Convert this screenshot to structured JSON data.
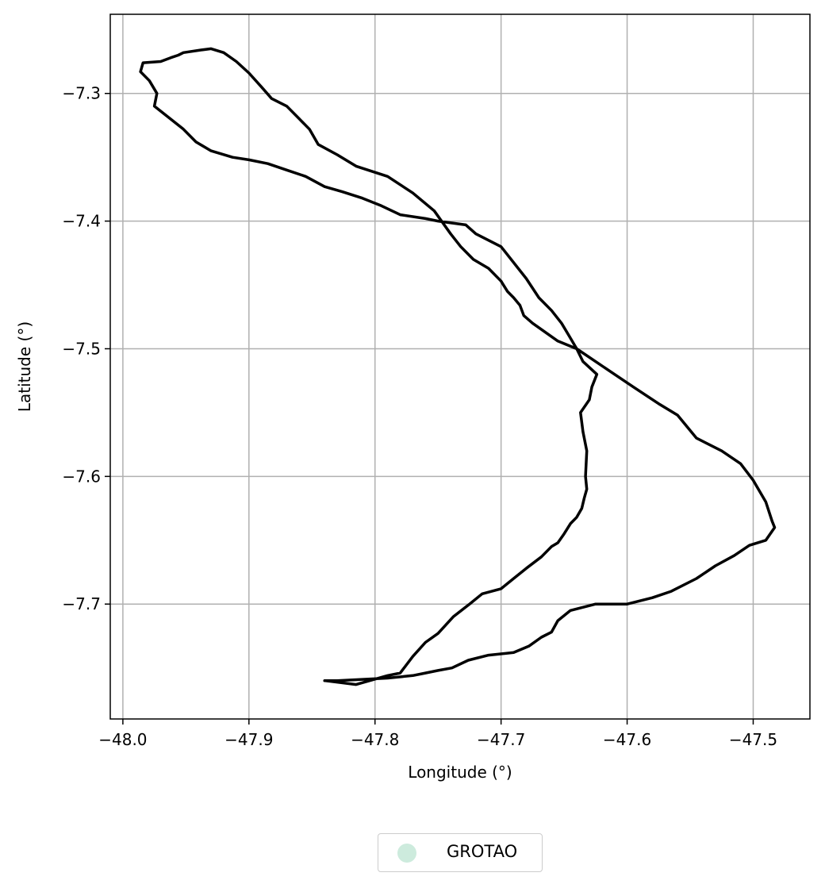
{
  "chart_data": {
    "type": "map",
    "xlabel": "Longitude (°)",
    "ylabel": "Latitude (°)",
    "xlim": [
      -48.01,
      -47.455
    ],
    "ylim": [
      -7.79,
      -7.238
    ],
    "xticks": [
      -48.0,
      -47.9,
      -47.8,
      -47.7,
      -47.6,
      -47.5
    ],
    "xtick_labels": [
      "−48.0",
      "−47.9",
      "−47.8",
      "−47.7",
      "−47.6",
      "−47.5"
    ],
    "yticks": [
      -7.3,
      -7.4,
      -7.5,
      -7.6,
      -7.7
    ],
    "ytick_labels": [
      "−7.3",
      "−7.4",
      "−7.5",
      "−7.6",
      "−7.7"
    ],
    "grid": true,
    "outline_color": "#000000",
    "legend": {
      "placement": "bottom-center-below",
      "entries": [
        {
          "label": "GROTAO",
          "color": "#cdebdd",
          "marker": "circle"
        }
      ]
    },
    "boundary": {
      "name": "GROTAO",
      "lon": [
        -47.84,
        -47.815,
        -47.79,
        -47.78,
        -47.77,
        -47.76,
        -47.75,
        -47.738,
        -47.725,
        -47.715,
        -47.7,
        -47.69,
        -47.68,
        -47.668,
        -47.66,
        -47.655,
        -47.65,
        -47.645,
        -47.64,
        -47.636,
        -47.634,
        -47.632,
        -47.633,
        -47.632,
        -47.635,
        -47.637,
        -47.63,
        -47.628,
        -47.624,
        -47.635,
        -47.64,
        -47.646,
        -47.652,
        -47.66,
        -47.67,
        -47.68,
        -47.7,
        -47.72,
        -47.728,
        -47.75,
        -47.76,
        -47.78,
        -47.795,
        -47.81,
        -47.826,
        -47.84,
        -47.855,
        -47.87,
        -47.885,
        -47.9,
        -47.913,
        -47.93,
        -47.942,
        -47.952,
        -47.975,
        -47.973,
        -47.979,
        -47.986,
        -47.984,
        -47.97,
        -47.962,
        -47.956,
        -47.952,
        -47.938,
        -47.93,
        -47.92,
        -47.91,
        -47.9,
        -47.89,
        -47.882,
        -47.87,
        -47.86,
        -47.852,
        -47.845,
        -47.83,
        -47.815,
        -47.79,
        -47.77,
        -47.753,
        -47.74,
        -47.732,
        -47.722,
        -47.71,
        -47.7,
        -47.695,
        -47.69,
        -47.685,
        -47.682,
        -47.675,
        -47.665,
        -47.655,
        -47.64,
        -47.625,
        -47.61,
        -47.595,
        -47.575,
        -47.56,
        -47.545,
        -47.525,
        -47.51,
        -47.5,
        -47.49,
        -47.485,
        -47.483,
        -47.49,
        -47.503,
        -47.515,
        -47.53,
        -47.545,
        -47.565,
        -47.58,
        -47.6,
        -47.625,
        -47.645,
        -47.655,
        -47.66,
        -47.668,
        -47.678,
        -47.69,
        -47.71,
        -47.726,
        -47.739,
        -47.75,
        -47.76,
        -47.77,
        -47.79,
        -47.81,
        -47.83,
        -47.84
      ],
      "lat": [
        -7.76,
        -7.763,
        -7.756,
        -7.754,
        -7.741,
        -7.73,
        -7.723,
        -7.71,
        -7.7,
        -7.692,
        -7.688,
        -7.68,
        -7.672,
        -7.663,
        -7.655,
        -7.652,
        -7.645,
        -7.637,
        -7.632,
        -7.625,
        -7.617,
        -7.61,
        -7.6,
        -7.58,
        -7.565,
        -7.55,
        -7.54,
        -7.53,
        -7.52,
        -7.51,
        -7.5,
        -7.49,
        -7.48,
        -7.47,
        -7.46,
        -7.445,
        -7.42,
        -7.41,
        -7.403,
        -7.4,
        -7.398,
        -7.395,
        -7.388,
        -7.382,
        -7.377,
        -7.373,
        -7.365,
        -7.36,
        -7.355,
        -7.352,
        -7.35,
        -7.345,
        -7.338,
        -7.328,
        -7.31,
        -7.3,
        -7.29,
        -7.283,
        -7.276,
        -7.275,
        -7.272,
        -7.27,
        -7.268,
        -7.266,
        -7.265,
        -7.268,
        -7.275,
        -7.284,
        -7.295,
        -7.304,
        -7.31,
        -7.32,
        -7.328,
        -7.34,
        -7.348,
        -7.357,
        -7.365,
        -7.378,
        -7.392,
        -7.41,
        -7.42,
        -7.43,
        -7.437,
        -7.447,
        -7.455,
        -7.46,
        -7.466,
        -7.474,
        -7.48,
        -7.487,
        -7.494,
        -7.5,
        -7.51,
        -7.52,
        -7.53,
        -7.543,
        -7.552,
        -7.57,
        -7.58,
        -7.59,
        -7.603,
        -7.62,
        -7.635,
        -7.64,
        -7.65,
        -7.654,
        -7.662,
        -7.67,
        -7.68,
        -7.69,
        -7.695,
        -7.7,
        -7.7,
        -7.705,
        -7.713,
        -7.722,
        -7.726,
        -7.733,
        -7.738,
        -7.74,
        -7.744,
        -7.75,
        -7.752,
        -7.754,
        -7.756,
        -7.758,
        -7.759,
        -7.76,
        -7.76
      ]
    }
  }
}
